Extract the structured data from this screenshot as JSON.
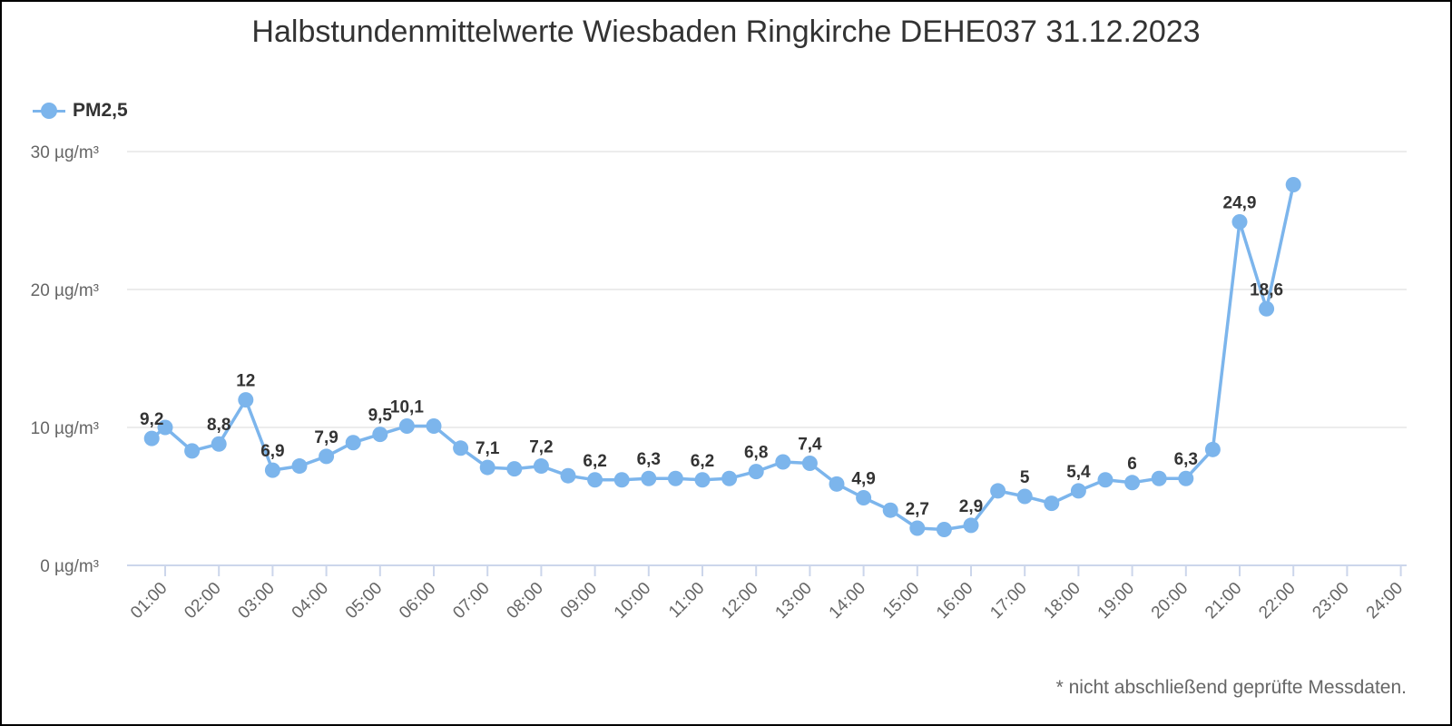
{
  "chart_data": {
    "type": "line",
    "title": "Halbstundenmittelwerte Wiesbaden Ringkirche DEHE037 31.12.2023",
    "footnote": "* nicht abschließend geprüfte Messdaten.",
    "xlabel": "",
    "ylabel": "",
    "ylim": [
      0,
      30
    ],
    "yticks": [
      "0 µg/m³",
      "10 µg/m³",
      "20 µg/m³",
      "30 µg/m³"
    ],
    "ytick_values": [
      0,
      10,
      20,
      30
    ],
    "categories": [
      "01:00",
      "02:00",
      "03:00",
      "04:00",
      "05:00",
      "06:00",
      "07:00",
      "08:00",
      "09:00",
      "10:00",
      "11:00",
      "12:00",
      "13:00",
      "14:00",
      "15:00",
      "16:00",
      "17:00",
      "18:00",
      "19:00",
      "20:00",
      "21:00",
      "22:00",
      "23:00",
      "24:00"
    ],
    "grid": true,
    "legend_position": "top-left",
    "color": "#7cb5ec",
    "series": [
      {
        "name": "PM2,5",
        "x": [
          0.75,
          1,
          1.5,
          2,
          2.5,
          3,
          3.5,
          4,
          4.5,
          5,
          5.5,
          6,
          6.5,
          7,
          7.5,
          8,
          8.5,
          9,
          9.5,
          10,
          10.5,
          11,
          11.5,
          12,
          12.5,
          13,
          13.5,
          14,
          14.5,
          15,
          15.5,
          16,
          16.5,
          17,
          17.5,
          18,
          18.5,
          19,
          19.5,
          20,
          20.5,
          21,
          21.5,
          22
        ],
        "values": [
          9.2,
          10,
          8.3,
          8.8,
          12,
          6.9,
          7.2,
          7.9,
          8.9,
          9.5,
          10.1,
          10.1,
          8.5,
          7.1,
          7,
          7.2,
          6.5,
          6.2,
          6.2,
          6.3,
          6.3,
          6.2,
          6.3,
          6.8,
          7.5,
          7.4,
          5.9,
          4.9,
          4,
          2.7,
          2.6,
          2.9,
          5.4,
          5,
          4.5,
          5.4,
          6.2,
          6,
          6.3,
          6.3,
          8.4,
          24.9,
          18.6,
          27.6
        ],
        "labels": [
          "9,2",
          "",
          "",
          "8,8",
          "12",
          "6,9",
          "",
          "7,9",
          "",
          "9,5",
          "10,1",
          "",
          "",
          "7,1",
          "",
          "7,2",
          "",
          "6,2",
          "",
          "6,3",
          "",
          "6,2",
          "",
          "6,8",
          "",
          "7,4",
          "",
          "4,9",
          "",
          "2,7",
          "",
          "2,9",
          "",
          "5",
          "",
          "5,4",
          "",
          "6",
          "",
          "6,3",
          "",
          "24,9",
          "18,6",
          ""
        ]
      }
    ]
  }
}
